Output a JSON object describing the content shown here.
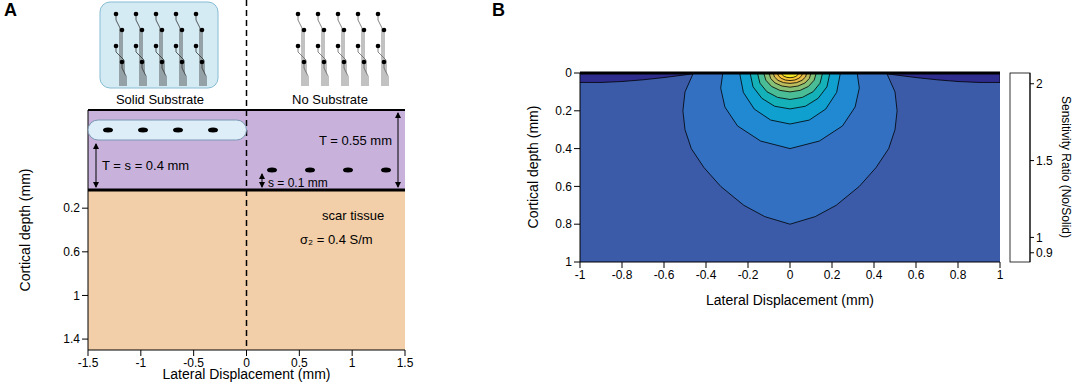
{
  "chart_data": [
    {
      "type": "schematic",
      "title": "A",
      "x_label": "Lateral Displacement (mm)",
      "y_label": "Cortical depth (mm)",
      "xlim": [
        -1.5,
        1.5
      ],
      "xticks": [
        -1.5,
        -1,
        -0.5,
        0,
        0.5,
        1,
        1.5
      ],
      "ylim": [
        -0.7,
        1.5
      ],
      "yticks": [
        0.2,
        0.6,
        1,
        1.4
      ],
      "annotations": [
        "Solid Substrate",
        "No Substrate",
        "T = s = 0.4 mm",
        "s = 0.1 mm",
        "T = 0.55 mm",
        "scar tissue",
        "σ₂ =  0.4 S/m"
      ]
    },
    {
      "type": "contour",
      "title": "B",
      "x_label": "Lateral Displacement (mm)",
      "y_label": "Cortical depth (mm)",
      "xlim": [
        -1,
        1
      ],
      "xticks": [
        -1,
        -0.8,
        -0.6,
        -0.4,
        -0.2,
        0,
        0.2,
        0.4,
        0.6,
        0.8,
        1
      ],
      "ylim": [
        0,
        1
      ],
      "yticks": [
        0,
        0.2,
        0.4,
        0.6,
        0.8,
        1
      ],
      "background": {
        "level": 1
      },
      "contours": [
        {
          "level": 0.9,
          "x": [
            -1,
            -1,
            -0.9,
            -0.8,
            -0.7,
            -0.6,
            -0.5,
            -0.44
          ],
          "y": [
            0,
            0.05,
            0.05,
            0.045,
            0.036,
            0.024,
            0.01,
            0
          ]
        },
        {
          "level": 0.9,
          "x": [
            1,
            1,
            0.9,
            0.8,
            0.7,
            0.6,
            0.5,
            0.44
          ],
          "y": [
            0,
            0.05,
            0.05,
            0.045,
            0.036,
            0.024,
            0.01,
            0
          ]
        },
        {
          "level": 1.1,
          "x": [
            -0.46,
            -0.5,
            -0.51,
            -0.5,
            -0.47,
            -0.41,
            -0.33,
            -0.22,
            -0.12,
            0,
            0.12,
            0.22,
            0.33,
            0.41,
            0.47,
            0.5,
            0.51,
            0.5,
            0.46
          ],
          "y": [
            0,
            0.1,
            0.2,
            0.3,
            0.4,
            0.5,
            0.6,
            0.7,
            0.76,
            0.8,
            0.76,
            0.7,
            0.6,
            0.5,
            0.4,
            0.3,
            0.2,
            0.1,
            0
          ]
        },
        {
          "level": 1.2,
          "x": [
            -0.32,
            -0.33,
            -0.31,
            -0.25,
            -0.14,
            0,
            0.14,
            0.25,
            0.31,
            0.33,
            0.32
          ],
          "y": [
            0,
            0.08,
            0.18,
            0.28,
            0.36,
            0.4,
            0.36,
            0.28,
            0.18,
            0.08,
            0
          ]
        },
        {
          "level": 1.3,
          "x": [
            -0.24,
            -0.222,
            -0.17,
            -0.092,
            0,
            0.092,
            0.17,
            0.222,
            0.24
          ],
          "y": [
            0,
            0.103,
            0.191,
            0.249,
            0.27,
            0.249,
            0.191,
            0.103,
            0
          ]
        },
        {
          "level": 1.4,
          "x": [
            -0.19,
            -0.176,
            -0.134,
            -0.073,
            0,
            0.073,
            0.134,
            0.176,
            0.19
          ],
          "y": [
            0,
            0.073,
            0.134,
            0.176,
            0.19,
            0.176,
            0.134,
            0.073,
            0
          ]
        },
        {
          "level": 1.5,
          "x": [
            -0.155,
            -0.143,
            -0.11,
            -0.059,
            0,
            0.059,
            0.11,
            0.143,
            0.155
          ],
          "y": [
            0,
            0.054,
            0.099,
            0.129,
            0.14,
            0.129,
            0.099,
            0.054,
            0
          ]
        },
        {
          "level": 1.6,
          "x": [
            -0.125,
            -0.115,
            -0.088,
            -0.048,
            0,
            0.048,
            0.088,
            0.115,
            0.125
          ],
          "y": [
            0,
            0.038,
            0.071,
            0.092,
            0.1,
            0.092,
            0.071,
            0.038,
            0
          ]
        },
        {
          "level": 1.7,
          "x": [
            -0.1,
            -0.092,
            -0.071,
            -0.038,
            0,
            0.038,
            0.071,
            0.092,
            0.1
          ],
          "y": [
            0,
            0.029,
            0.053,
            0.069,
            0.075,
            0.069,
            0.053,
            0.029,
            0
          ]
        },
        {
          "level": 1.8,
          "x": [
            -0.08,
            -0.074,
            -0.057,
            -0.031,
            0,
            0.031,
            0.057,
            0.074,
            0.08
          ],
          "y": [
            0,
            0.021,
            0.039,
            0.051,
            0.055,
            0.051,
            0.039,
            0.021,
            0
          ]
        },
        {
          "level": 1.9,
          "x": [
            -0.06,
            -0.055,
            -0.042,
            -0.023,
            0,
            0.023,
            0.042,
            0.055,
            0.06
          ],
          "y": [
            0,
            0.015,
            0.028,
            0.037,
            0.04,
            0.037,
            0.028,
            0.015,
            0
          ]
        },
        {
          "level": 2.0,
          "x": [
            -0.04,
            -0.037,
            -0.028,
            -0.015,
            0,
            0.015,
            0.028,
            0.037,
            0.04
          ],
          "y": [
            0,
            0.01,
            0.018,
            0.023,
            0.025,
            0.023,
            0.018,
            0.01,
            0
          ]
        }
      ],
      "colorbar": {
        "label": "Sensitivity Ratio (No/Solid)",
        "range": [
          0.84,
          2.07
        ],
        "ticks": [
          0.9,
          1,
          1.5,
          2
        ],
        "bounds": [
          0.84,
          0.95,
          1.05,
          1.15,
          1.25,
          1.35,
          1.45,
          1.55,
          1.65,
          1.75,
          1.85,
          1.95,
          2.07
        ],
        "colors": [
          "#2e2c8c",
          "#3b5ba9",
          "#3470c2",
          "#2189d2",
          "#0fa0cf",
          "#14b2b8",
          "#4abd96",
          "#86c077",
          "#bcbd5f",
          "#e6bb48",
          "#fcc935",
          "#f5e825"
        ]
      }
    }
  ]
}
